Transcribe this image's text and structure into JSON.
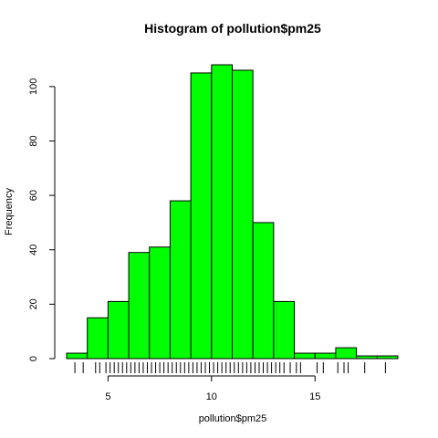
{
  "chart_data": {
    "type": "bar",
    "title": "Histogram of pollution$pm25",
    "xlabel": "pollution$pm25",
    "ylabel": "Frequency",
    "bar_color": "#00ff00",
    "bin_edges": [
      3,
      4,
      5,
      6,
      7,
      8,
      9,
      10,
      11,
      12,
      13,
      14,
      15,
      16,
      17,
      18,
      19
    ],
    "values": [
      2,
      15,
      21,
      39,
      41,
      58,
      105,
      108,
      106,
      50,
      21,
      2,
      2,
      4,
      1,
      1
    ],
    "xlim": [
      3,
      19
    ],
    "ylim": [
      0,
      108
    ],
    "x_ticks": [
      5,
      10,
      15
    ],
    "y_ticks": [
      0,
      20,
      40,
      60,
      80,
      100
    ],
    "rug": [
      3.4,
      3.8,
      4.4,
      4.6,
      4.9,
      5.1,
      5.3,
      5.5,
      5.7,
      5.9,
      6.1,
      6.3,
      6.5,
      6.7,
      6.9,
      7.1,
      7.3,
      7.5,
      7.7,
      7.9,
      8.1,
      8.3,
      8.5,
      8.7,
      8.9,
      9.1,
      9.3,
      9.5,
      9.7,
      9.9,
      10.1,
      10.3,
      10.5,
      10.7,
      10.9,
      11.1,
      11.3,
      11.5,
      11.7,
      11.9,
      12.1,
      12.3,
      12.5,
      12.7,
      12.9,
      13.1,
      13.3,
      13.5,
      13.8,
      14.1,
      14.3,
      15.1,
      15.4,
      16.1,
      16.4,
      16.6,
      17.4,
      18.4
    ],
    "grid": false
  }
}
